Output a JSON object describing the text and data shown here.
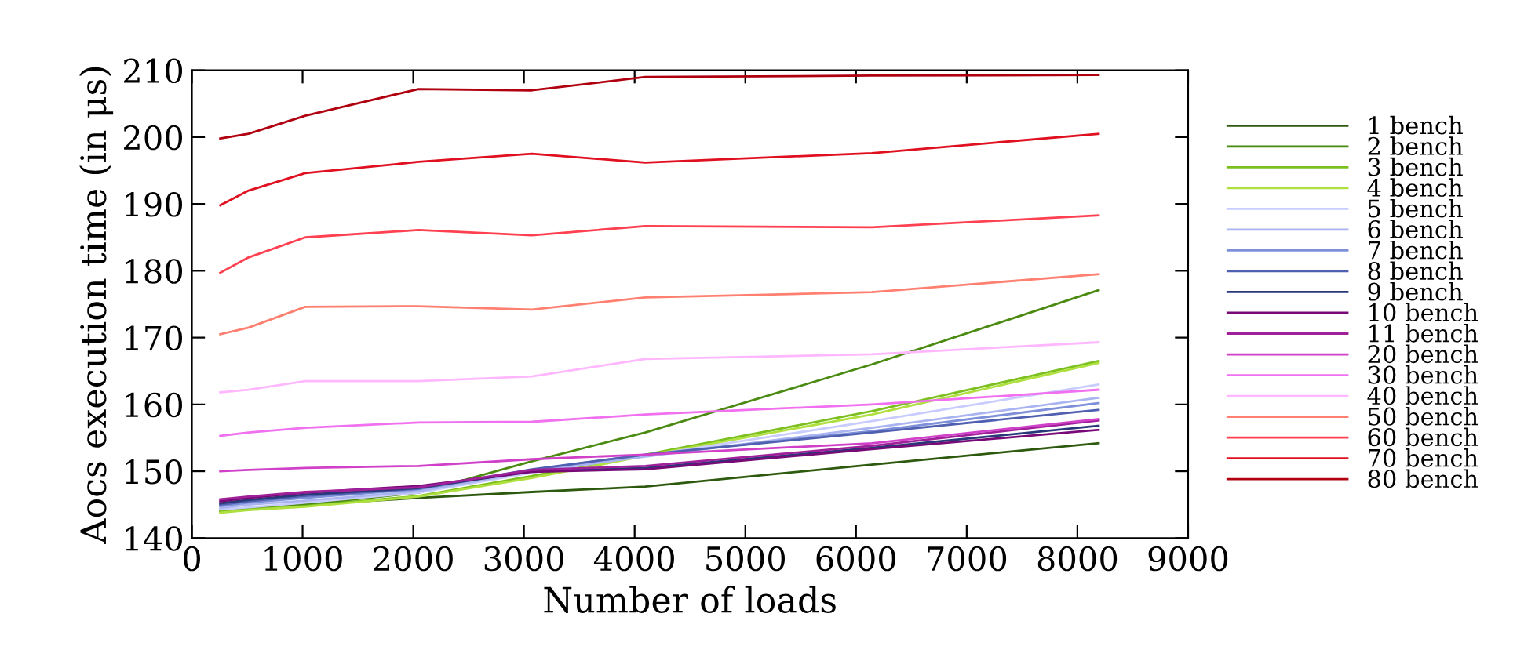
{
  "chart_data": {
    "type": "line",
    "xlabel": "Number of loads",
    "ylabel": "Aocs execution time (in μs)",
    "x": [
      256,
      512,
      1024,
      2048,
      3072,
      4096,
      6144,
      8192
    ],
    "xlim": [
      0,
      9000
    ],
    "xticks": [
      0,
      1000,
      2000,
      3000,
      4000,
      5000,
      6000,
      7000,
      8000,
      9000
    ],
    "ylim": [
      140,
      210
    ],
    "yticks": [
      140,
      150,
      160,
      170,
      180,
      190,
      200,
      210
    ],
    "grid": false,
    "legend": "right",
    "marker": "none",
    "line_style": "solid",
    "series": [
      {
        "name": "1 bench",
        "color": "#2d5a0e",
        "values": [
          144,
          144.3,
          145,
          146,
          146.9,
          147.7,
          151,
          154.2
        ]
      },
      {
        "name": "2 bench",
        "color": "#4a8a10",
        "values": [
          144,
          144.3,
          145,
          146.8,
          151.5,
          155.8,
          166,
          177.1
        ]
      },
      {
        "name": "3 bench",
        "color": "#7cc020",
        "values": [
          144,
          144.3,
          144.8,
          146.3,
          149.3,
          152.5,
          159,
          166.5
        ]
      },
      {
        "name": "4 bench",
        "color": "#b0e040",
        "values": [
          143.8,
          144.2,
          144.7,
          146.2,
          149,
          152.3,
          158.5,
          166.2
        ]
      },
      {
        "name": "5 bench",
        "color": "#c8ccff",
        "values": [
          144.3,
          144.6,
          145.3,
          146.8,
          149.8,
          152.3,
          157.5,
          163
        ]
      },
      {
        "name": "6 bench",
        "color": "#aab4f0",
        "values": [
          144.5,
          145,
          145.6,
          147,
          150,
          152.2,
          156.5,
          161
        ]
      },
      {
        "name": "7 bench",
        "color": "#7d8fd8",
        "values": [
          144.8,
          145.3,
          146,
          147.3,
          150.2,
          152.5,
          156,
          160.2
        ]
      },
      {
        "name": "8 bench",
        "color": "#5060b0",
        "values": [
          145,
          145.5,
          146.3,
          147.4,
          150.3,
          152.5,
          155.8,
          159.2
        ]
      },
      {
        "name": "9 bench",
        "color": "#283878",
        "values": [
          145.2,
          145.7,
          146.5,
          147.5,
          150,
          150.5,
          153.5,
          156.8
        ]
      },
      {
        "name": "10 bench",
        "color": "#780a78",
        "values": [
          145.5,
          146,
          146.8,
          147.8,
          149.9,
          150.3,
          153.3,
          156.2
        ]
      },
      {
        "name": "11 bench",
        "color": "#a0209a",
        "values": [
          145.8,
          146.2,
          146.9,
          147.6,
          150.2,
          150.8,
          153.8,
          157.6
        ]
      },
      {
        "name": "20 bench",
        "color": "#d040c8",
        "values": [
          150,
          150.2,
          150.5,
          150.8,
          151.8,
          152.5,
          154.2,
          157.8
        ]
      },
      {
        "name": "30 bench",
        "color": "#f070f0",
        "values": [
          155.3,
          155.8,
          156.5,
          157.3,
          157.4,
          158.5,
          160,
          162.2
        ]
      },
      {
        "name": "40 bench",
        "color": "#ffb8ff",
        "values": [
          161.8,
          162.2,
          163.5,
          163.5,
          164.2,
          166.8,
          167.5,
          169.3
        ]
      },
      {
        "name": "50 bench",
        "color": "#ff8070",
        "values": [
          170.5,
          171.5,
          174.6,
          174.7,
          174.2,
          176,
          176.8,
          179.5
        ]
      },
      {
        "name": "60 bench",
        "color": "#ff4050",
        "values": [
          179.7,
          182,
          185,
          186.1,
          185.3,
          186.7,
          186.5,
          188.3
        ]
      },
      {
        "name": "70 bench",
        "color": "#e01020",
        "values": [
          189.8,
          192,
          194.6,
          196.3,
          197.5,
          196.2,
          197.6,
          200.5
        ]
      },
      {
        "name": "80 bench",
        "color": "#b00010",
        "values": [
          199.8,
          200.5,
          203.2,
          207.2,
          207,
          209,
          209.2,
          209.3
        ]
      }
    ]
  }
}
